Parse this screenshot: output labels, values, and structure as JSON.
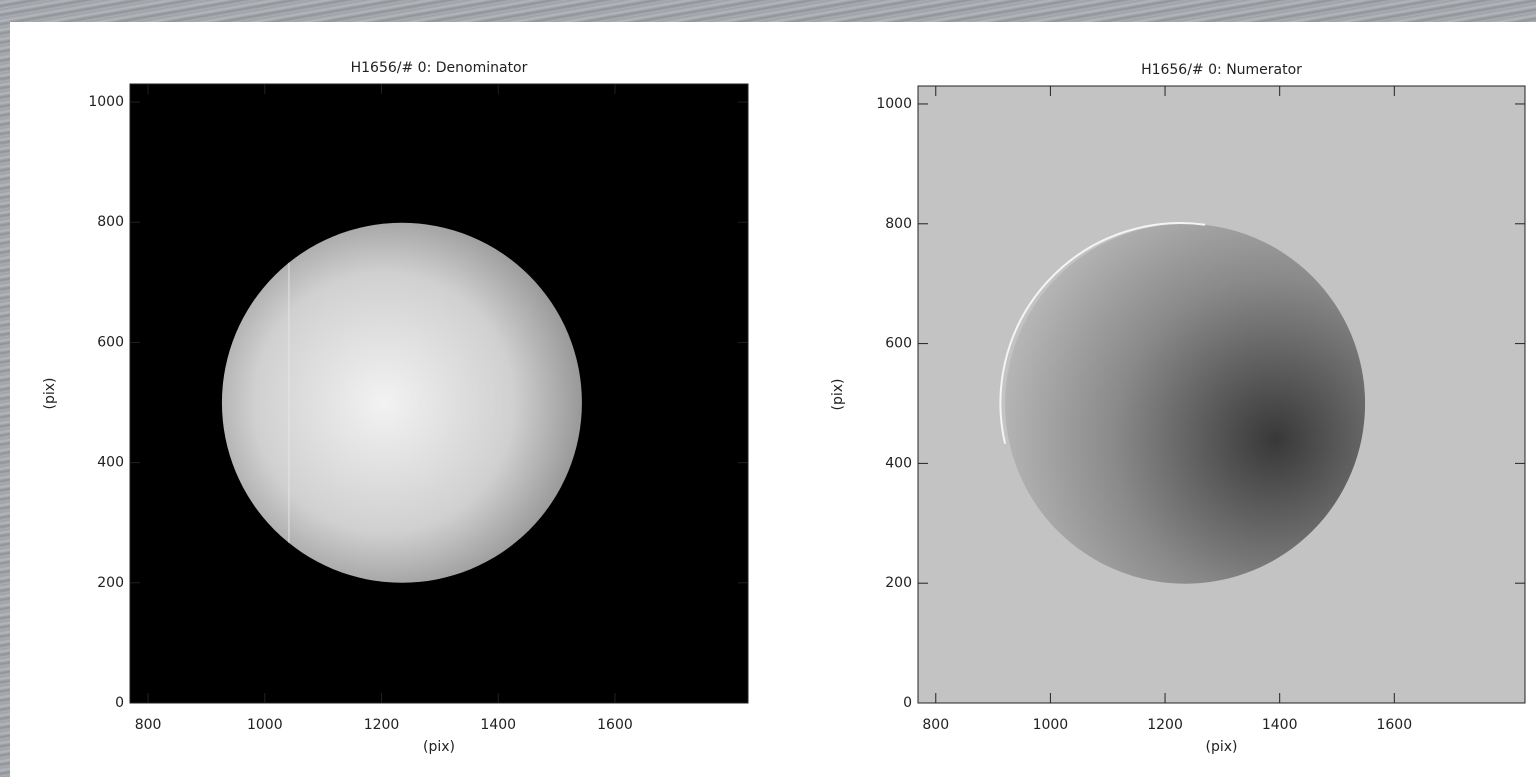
{
  "chart_data": [
    {
      "type": "image",
      "title": "H1656/# 0: Denominator",
      "x_label": "(pix)",
      "y_label": "(pix)",
      "xlim": [
        769,
        1828
      ],
      "ylim": [
        0,
        1030
      ],
      "xticks": [
        800,
        1000,
        1200,
        1400,
        1600
      ],
      "yticks": [
        0,
        200,
        400,
        600,
        800,
        1000
      ],
      "background": "#000000"
    },
    {
      "type": "image",
      "title": "H1656/# 0: Numerator",
      "x_label": "(pix)",
      "y_label": "(pix)",
      "xlim": [
        769,
        1828
      ],
      "ylim": [
        0,
        1030
      ],
      "xticks": [
        800,
        1000,
        1200,
        1400,
        1600
      ],
      "yticks": [
        0,
        200,
        400,
        600,
        800,
        1000
      ],
      "background": "#c3c3c3"
    }
  ]
}
